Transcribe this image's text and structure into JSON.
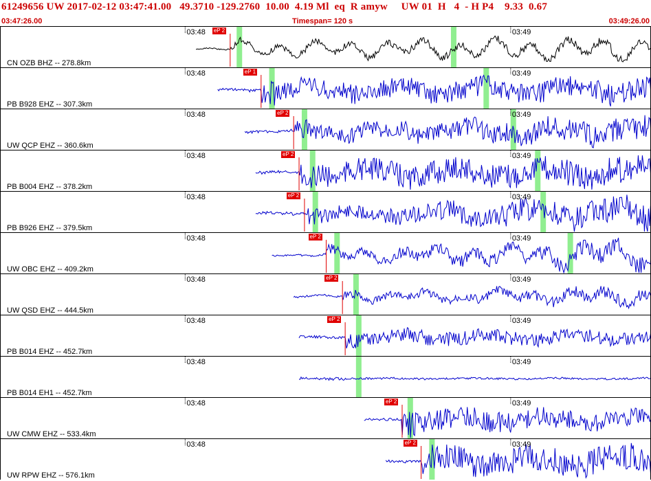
{
  "header": {
    "title": "61249656 UW 2017-02-12 03:47:41.00   49.3710 -129.2760  10.00  4.19 Ml  eq  R amyw     UW 01  H   4  - H P4    9.33  0.67",
    "start_time": "03:47:26.00",
    "timespan": "Timespan= 120 s",
    "end_time": "03:49:26.00"
  },
  "colors": {
    "title_red": "#cc0000",
    "pick_red": "#e00000",
    "trace_blue": "#0000cc",
    "trace_black": "#000000",
    "phase_green": "#90ee90"
  },
  "minute_marks": [
    "03:48",
    "03:49"
  ],
  "traces": [
    {
      "station": "CN OZB BHZ -- 278.8km",
      "pick": "eP 2",
      "pick_sec": 42.3,
      "green_secs": [
        44.0,
        83.5
      ],
      "color": "black",
      "start_sec": 36,
      "amp": 12,
      "end_amp": 20,
      "hf": 0.35
    },
    {
      "station": "PB B928 EHZ -- 307.3km",
      "pick": "eP 1",
      "pick_sec": 48.0,
      "green_secs": [
        50.0,
        89.5
      ],
      "color": "blue",
      "start_sec": 40,
      "amp": 15,
      "end_amp": 18,
      "hf": 0.9
    },
    {
      "station": "UW QCP EHZ -- 360.6km",
      "pick": "eP 2",
      "pick_sec": 54.0,
      "green_secs": [
        56.0,
        94.5
      ],
      "color": "blue",
      "start_sec": 45,
      "amp": 14,
      "end_amp": 22,
      "hf": 0.8
    },
    {
      "station": "PB B004 EHZ -- 378.2km",
      "pick": "eP 2",
      "pick_sec": 55.0,
      "green_secs": [
        57.5,
        99.0
      ],
      "color": "blue",
      "start_sec": 47,
      "amp": 18,
      "end_amp": 22,
      "hf": 0.9
    },
    {
      "station": "PB B926 EHZ -- 379.5km",
      "pick": "eP 2",
      "pick_sec": 56.0,
      "green_secs": [
        58.0,
        100.0
      ],
      "color": "blue",
      "start_sec": 47,
      "amp": 10,
      "end_amp": 24,
      "hf": 0.9
    },
    {
      "station": "UW OBC EHZ -- 409.2km",
      "pick": "eP 2",
      "pick_sec": 60.0,
      "green_secs": [
        62.0,
        105.0
      ],
      "color": "blue",
      "start_sec": 50,
      "amp": 10,
      "end_amp": 26,
      "hf": 0.55
    },
    {
      "station": "UW QSD EHZ -- 444.5km",
      "pick": "eP 2",
      "pick_sec": 63.0,
      "green_secs": [
        65.5
      ],
      "color": "blue",
      "start_sec": 54,
      "amp": 8,
      "end_amp": 16,
      "hf": 0.6
    },
    {
      "station": "PB B014 EHZ -- 452.7km",
      "pick": "eP 2",
      "pick_sec": 63.5,
      "green_secs": [
        66.0
      ],
      "color": "blue",
      "start_sec": 55,
      "amp": 12,
      "end_amp": 10,
      "hf": 0.9
    },
    {
      "station": "PB B014 EH1 -- 452.7km",
      "pick": "",
      "pick_sec": 0,
      "green_secs": [
        66.0
      ],
      "color": "blue",
      "start_sec": 55,
      "amp": 1.5,
      "end_amp": 1.5,
      "hf": 1.0
    },
    {
      "station": "UW CMW EHZ -- 533.4km",
      "pick": "eP 2",
      "pick_sec": 74.0,
      "green_secs": [
        75.5
      ],
      "color": "blue",
      "start_sec": 67,
      "amp": 18,
      "end_amp": 14,
      "hf": 0.9
    },
    {
      "station": "UW RPW EHZ -- 576.1km",
      "pick": "eP 2",
      "pick_sec": 77.5,
      "green_secs": [
        79.5
      ],
      "color": "blue",
      "start_sec": 71,
      "amp": 20,
      "end_amp": 22,
      "hf": 0.9
    }
  ]
}
